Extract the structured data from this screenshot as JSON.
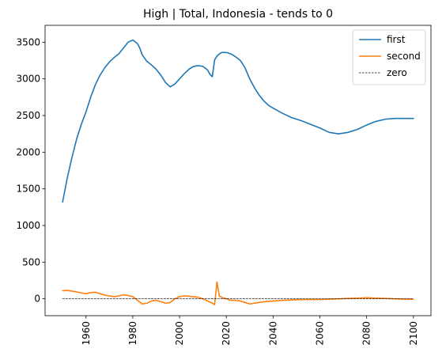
{
  "chart_data": {
    "type": "line",
    "title": "High | Total, Indonesia  - tends to 0",
    "xlabel": "",
    "ylabel": "",
    "xlim": [
      1942.5,
      2107.5
    ],
    "ylim": [
      -230,
      3730
    ],
    "x_ticks": [
      1960,
      1980,
      2000,
      2020,
      2040,
      2060,
      2080,
      2100
    ],
    "x_tick_labels": [
      "1960",
      "1980",
      "2000",
      "2020",
      "2040",
      "2060",
      "2080",
      "2100"
    ],
    "y_ticks": [
      0,
      500,
      1000,
      1500,
      2000,
      2500,
      3000,
      3500
    ],
    "y_tick_labels": [
      "0",
      "500",
      "1000",
      "1500",
      "2000",
      "2500",
      "3000",
      "3500"
    ],
    "grid": false,
    "legend_position": "top-right",
    "series": [
      {
        "name": "first",
        "color": "#1f77b4",
        "style": "solid",
        "x": [
          1950,
          1952,
          1954,
          1956,
          1958,
          1960,
          1962,
          1964,
          1966,
          1968,
          1970,
          1972,
          1974,
          1976,
          1978,
          1980,
          1982,
          1983,
          1984,
          1986,
          1988,
          1990,
          1992,
          1994,
          1996,
          1998,
          2000,
          2002,
          2004,
          2006,
          2008,
          2010,
          2012,
          2013,
          2014,
          2015,
          2016,
          2017,
          2018,
          2020,
          2022,
          2024,
          2026,
          2028,
          2030,
          2032,
          2034,
          2036,
          2038,
          2040,
          2044,
          2048,
          2052,
          2056,
          2060,
          2064,
          2068,
          2072,
          2076,
          2080,
          2084,
          2088,
          2092,
          2096,
          2100
        ],
        "y": [
          1320,
          1650,
          1930,
          2180,
          2380,
          2550,
          2750,
          2920,
          3050,
          3150,
          3230,
          3290,
          3340,
          3420,
          3500,
          3530,
          3480,
          3420,
          3330,
          3240,
          3190,
          3130,
          3050,
          2950,
          2890,
          2930,
          3000,
          3070,
          3130,
          3170,
          3180,
          3170,
          3120,
          3060,
          3030,
          3260,
          3310,
          3340,
          3360,
          3360,
          3340,
          3300,
          3250,
          3150,
          3000,
          2880,
          2780,
          2700,
          2640,
          2600,
          2530,
          2470,
          2430,
          2380,
          2330,
          2270,
          2250,
          2270,
          2310,
          2370,
          2420,
          2450,
          2460,
          2460,
          2460
        ]
      },
      {
        "name": "second",
        "color": "#ff7f0e",
        "style": "solid",
        "x": [
          1950,
          1952,
          1954,
          1956,
          1958,
          1960,
          1962,
          1964,
          1966,
          1968,
          1970,
          1972,
          1974,
          1976,
          1978,
          1980,
          1982,
          1984,
          1986,
          1988,
          1990,
          1992,
          1994,
          1996,
          1998,
          2000,
          2002,
          2004,
          2006,
          2008,
          2010,
          2012,
          2014,
          2015,
          2016,
          2017,
          2018,
          2020,
          2022,
          2024,
          2026,
          2028,
          2030,
          2032,
          2034,
          2036,
          2040,
          2044,
          2048,
          2052,
          2056,
          2060,
          2064,
          2068,
          2072,
          2076,
          2080,
          2084,
          2088,
          2092,
          2096,
          2100
        ],
        "y": [
          110,
          115,
          105,
          95,
          80,
          70,
          85,
          90,
          70,
          50,
          40,
          30,
          40,
          55,
          45,
          30,
          -20,
          -70,
          -60,
          -30,
          -20,
          -40,
          -60,
          -50,
          0,
          30,
          40,
          35,
          30,
          20,
          0,
          -30,
          -60,
          -80,
          230,
          40,
          20,
          0,
          -20,
          -20,
          -30,
          -50,
          -70,
          -60,
          -50,
          -40,
          -30,
          -20,
          -15,
          -10,
          -10,
          -10,
          -5,
          0,
          5,
          10,
          15,
          10,
          5,
          0,
          -5,
          -5
        ]
      },
      {
        "name": "zero",
        "color": "#000000",
        "style": "dashed",
        "x": [
          1950,
          2100
        ],
        "y": [
          0,
          0
        ]
      }
    ]
  }
}
